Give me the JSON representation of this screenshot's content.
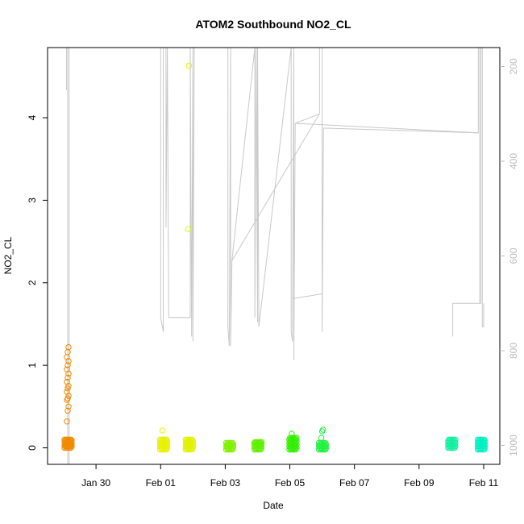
{
  "chart_data": {
    "type": "scatter",
    "title": "ATOM2 Southbound NO2_CL",
    "xlabel": "Date",
    "ylabel": "NO2_CL",
    "x_type": "date",
    "xlim": [
      "2016-01-28T12:00",
      "2016-02-11T12:00"
    ],
    "ylim": [
      -0.2,
      4.85
    ],
    "x_ticks": [
      {
        "date": "2016-01-30",
        "label": "Jan 30"
      },
      {
        "date": "2016-02-01",
        "label": "Feb 01"
      },
      {
        "date": "2016-02-03",
        "label": "Feb 03"
      },
      {
        "date": "2016-02-05",
        "label": "Feb 05"
      },
      {
        "date": "2016-02-07",
        "label": "Feb 07"
      },
      {
        "date": "2016-02-09",
        "label": "Feb 09"
      },
      {
        "date": "2016-02-11",
        "label": "Feb 11"
      }
    ],
    "y_ticks": [
      0,
      1,
      2,
      3,
      4
    ],
    "secondary_axis": {
      "side": "right",
      "color": "#bdbdbd",
      "reversed": true,
      "ylim": [
        1040,
        160
      ],
      "ticks": [
        200,
        400,
        600,
        800,
        1000
      ]
    },
    "grid": false,
    "legend": "none",
    "point_marker": "open-circle",
    "clusters": [
      {
        "date": "2016-01-29T03:00",
        "color": "#f08a00",
        "base_values": [
          0.0,
          0.02,
          0.03,
          0.05,
          0.07,
          0.09,
          0.1
        ],
        "outliers": [
          0.32,
          0.45,
          0.5,
          0.58,
          0.6,
          0.63,
          0.68,
          0.72,
          0.75,
          0.8,
          0.85,
          0.9,
          0.95,
          1.0,
          1.05,
          1.1,
          1.16,
          1.22
        ]
      },
      {
        "date": "2016-02-01T02:00",
        "color": "#e8f000",
        "base_values": [
          -0.02,
          0.0,
          0.02,
          0.04,
          0.06,
          0.08,
          0.1
        ],
        "outliers": [
          0.21
        ]
      },
      {
        "date": "2016-02-01T21:00",
        "color": "#e0f200",
        "base_values": [
          -0.02,
          0.0,
          0.02,
          0.04,
          0.06,
          0.08,
          0.1
        ],
        "outliers": [
          2.65,
          4.63
        ]
      },
      {
        "date": "2016-02-03T03:00",
        "color": "#80f000",
        "base_values": [
          -0.02,
          0.0,
          0.02,
          0.04,
          0.06
        ],
        "outliers": []
      },
      {
        "date": "2016-02-04T00:00",
        "color": "#60f000",
        "base_values": [
          -0.02,
          0.0,
          0.02,
          0.04,
          0.06,
          0.07
        ],
        "outliers": []
      },
      {
        "date": "2016-02-05T02:00",
        "color": "#30f000",
        "base_values": [
          -0.02,
          0.0,
          0.02,
          0.04,
          0.06,
          0.08,
          0.1,
          0.12
        ],
        "outliers": [
          0.17
        ]
      },
      {
        "date": "2016-02-06T00:00",
        "color": "#20f040",
        "base_values": [
          -0.02,
          0.0,
          0.02,
          0.04,
          0.06
        ],
        "outliers": [
          0.12,
          0.2,
          0.22
        ]
      },
      {
        "date": "2016-02-10T00:00",
        "color": "#10f0a0",
        "base_values": [
          0.0,
          0.02,
          0.04,
          0.06,
          0.08,
          0.1
        ],
        "outliers": []
      },
      {
        "date": "2016-02-10T22:00",
        "color": "#00f0c0",
        "base_values": [
          -0.02,
          0.0,
          0.02,
          0.04,
          0.06,
          0.08,
          0.1
        ],
        "outliers": []
      }
    ],
    "trace": {
      "color": "#c8c8c8",
      "description": "secondary-axis trace",
      "points": [
        [
          "2016-01-29T02:00",
          250
        ],
        [
          "2016-01-29T02:00",
          160
        ],
        [
          "2016-01-29T03:00",
          160
        ],
        [
          "2016-01-29T03:00",
          1040
        ],
        [
          "2016-01-29T04:00",
          1040
        ],
        [
          "2016-01-29T04:00",
          160
        ],
        [
          "2016-02-01T00:00",
          160
        ],
        [
          "2016-02-01T00:00",
          730
        ],
        [
          "2016-02-01T02:00",
          760
        ],
        [
          "2016-02-01T02:00",
          160
        ],
        [
          "2016-02-01T03:00",
          160
        ],
        [
          "2016-02-01T04:00",
          160
        ],
        [
          "2016-02-01T04:00",
          540
        ],
        [
          "2016-02-01T05:00",
          160
        ],
        [
          "2016-02-01T06:00",
          730
        ],
        [
          "2016-02-01T22:00",
          730
        ],
        [
          "2016-02-01T22:00",
          160
        ],
        [
          "2016-02-01T23:00",
          770
        ],
        [
          "2016-02-02T00:00",
          160
        ],
        [
          "2016-02-02T00:00",
          780
        ],
        [
          "2016-02-02T01:00",
          160
        ],
        [
          "2016-02-03T02:00",
          160
        ],
        [
          "2016-02-03T02:00",
          750
        ],
        [
          "2016-02-03T03:00",
          790
        ],
        [
          "2016-02-03T04:00",
          160
        ],
        [
          "2016-02-03T04:00",
          790
        ],
        [
          "2016-02-03T05:00",
          610
        ],
        [
          "2016-02-03T22:00",
          160
        ],
        [
          "2016-02-03T22:00",
          730
        ],
        [
          "2016-02-03T23:00",
          160
        ],
        [
          "2016-02-04T00:00",
          740
        ],
        [
          "2016-02-04T00:00",
          160
        ],
        [
          "2016-02-04T01:00",
          750
        ],
        [
          "2016-02-05T01:00",
          160
        ],
        [
          "2016-02-05T01:00",
          760
        ],
        [
          "2016-02-05T02:00",
          780
        ],
        [
          "2016-02-05T02:00",
          690
        ],
        [
          "2016-02-05T03:00",
          160
        ],
        [
          "2016-02-05T03:00",
          820
        ],
        [
          "2016-02-05T04:00",
          320
        ],
        [
          "2016-02-05T22:00",
          300
        ],
        [
          "2016-02-05T22:00",
          160
        ],
        [
          "2016-02-06T00:00",
          160
        ],
        [
          "2016-02-06T00:00",
          760
        ],
        [
          "2016-02-06T01:00",
          330
        ],
        [
          "2016-02-10T20:00",
          340
        ],
        [
          "2016-02-10T20:00",
          160
        ],
        [
          "2016-02-10T21:00",
          160
        ],
        [
          "2016-02-10T21:00",
          700
        ],
        [
          "2016-02-10T22:00",
          700
        ],
        [
          "2016-02-10T22:00",
          160
        ],
        [
          "2016-02-10T23:00",
          160
        ],
        [
          "2016-02-10T23:00",
          750
        ],
        [
          "2016-02-11T00:00",
          750
        ],
        [
          "2016-02-11T00:00",
          700
        ]
      ],
      "segments": [
        [
          [
            "2016-02-01T06:00",
            730
          ],
          [
            "2016-02-01T22:00",
            730
          ]
        ],
        [
          [
            "2016-02-03T05:00",
            610
          ],
          [
            "2016-02-05T22:00",
            300
          ]
        ],
        [
          [
            "2016-02-05T02:00",
            690
          ],
          [
            "2016-02-06T00:00",
            680
          ]
        ],
        [
          [
            "2016-02-05T04:00",
            320
          ],
          [
            "2016-02-10T20:00",
            340
          ]
        ],
        [
          [
            "2016-02-10T01:00",
            770
          ],
          [
            "2016-02-10T01:00",
            700
          ],
          [
            "2016-02-10T21:00",
            700
          ]
        ]
      ]
    }
  }
}
